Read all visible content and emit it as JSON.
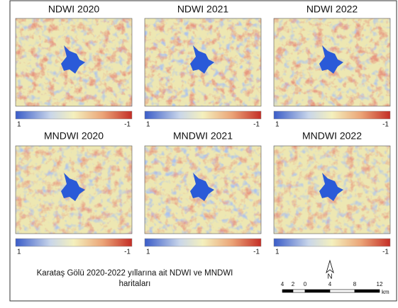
{
  "panels": [
    {
      "title": "NDWI 2020",
      "legend_left": "1",
      "legend_right": "-1"
    },
    {
      "title": "NDWI 2021",
      "legend_left": "1",
      "legend_right": "-1"
    },
    {
      "title": "NDWI 2022",
      "legend_left": "1",
      "legend_right": "-1"
    },
    {
      "title": "MNDWI 2020",
      "legend_left": "1",
      "legend_right": "-1"
    },
    {
      "title": "MNDWI 2021",
      "legend_left": "1",
      "legend_right": "-1"
    },
    {
      "title": "MNDWI 2022",
      "legend_left": "1",
      "legend_right": "-1"
    }
  ],
  "caption": [
    "Karataş Gölü 2020-2022 yıllarına ait NDWI ve MNDWI",
    "haritaları"
  ],
  "north": "N",
  "scale": {
    "labels": [
      "4",
      "2",
      "0",
      "4",
      "8",
      "12"
    ],
    "unit": "km"
  }
}
